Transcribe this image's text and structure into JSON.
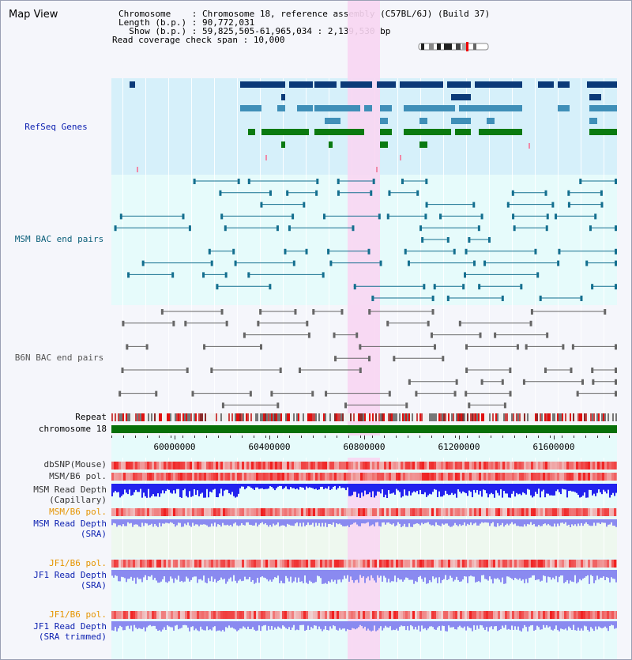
{
  "window": {
    "title": "Map View"
  },
  "info": {
    "chromosome_label": "Chromosome    :",
    "chromosome_value": "Chromosome 18, reference assembly (C57BL/6J) (Build 37)",
    "length_label": "Length (b.p.) :",
    "length_value": "90,772,031",
    "show_label": "  Show (b.p.) :",
    "show_value": "59,825,505-61,965,034 : 2,139,530 bp",
    "coverage_label": "Read coverage check span :",
    "coverage_value": "10,000"
  },
  "tracks": {
    "refseq": "RefSeq Genes",
    "msm_bac": "MSM BAC end pairs",
    "b6n_bac": "B6N BAC end pairs",
    "repeat": "Repeat",
    "chromosome": "chromosome 18",
    "dbsnp": "dbSNP(Mouse)",
    "msm_b6_pol": "MSM/B6 pol.",
    "msm_depth_cap_1": "MSM Read Depth",
    "msm_depth_cap_2": "(Capillary)",
    "msm_b6_pol2": "MSM/B6 pol.",
    "msm_depth_sra_1": "MSM Read Depth",
    "msm_depth_sra_2": "(SRA)",
    "jf1_b6_pol": "JF1/B6 pol.",
    "jf1_depth_sra_1": "JF1 Read Depth",
    "jf1_depth_sra_2": "(SRA)",
    "jf1_b6_pol2": "JF1/B6 pol.",
    "jf1_depth_trim_1": "JF1 Read Depth",
    "jf1_depth_trim_2": "(SRA trimmed)"
  },
  "axis": {
    "ticks": [
      "60000000",
      "60400000",
      "60800000",
      "61200000",
      "61600000"
    ]
  },
  "colors": {
    "refseq_bg": "#d6f0fa",
    "msm_bg": "#e6fbfb",
    "b6n_bg": "#f5f6fb",
    "highlight": "#f8d6f2",
    "gene_dark": "#0b3a78",
    "gene_mid": "#3f8fb8",
    "gene_green": "#0a7a10",
    "msm_pair": "#146f8f",
    "b6n_pair": "#666666",
    "chromosome": "#087008",
    "depth_blue": "#2222ee",
    "depth_light": "#8a8af0",
    "label_blue": "#0b1fb0",
    "label_orange": "#e59400",
    "label_teal": "#0b5f7a"
  }
}
